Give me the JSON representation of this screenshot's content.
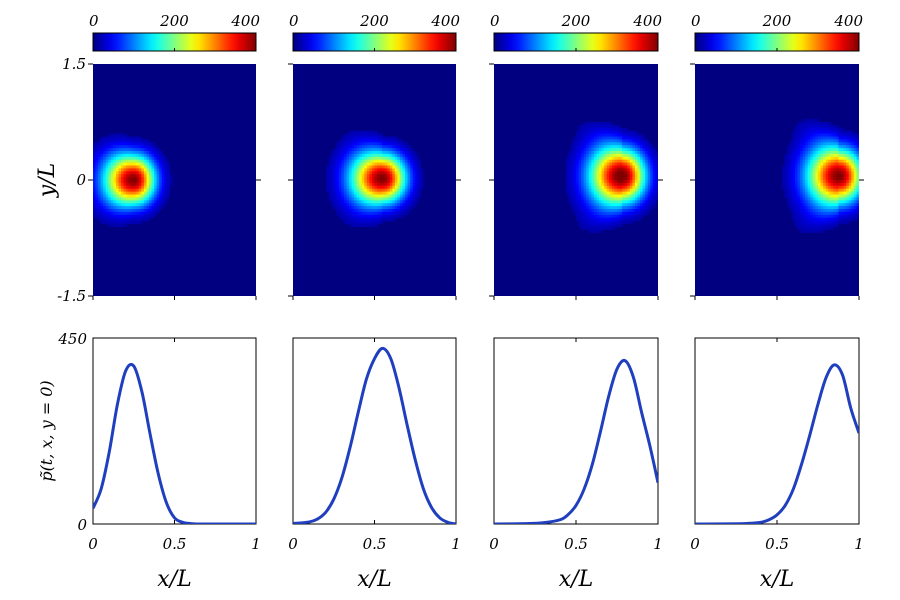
{
  "chart_data": [
    {
      "type": "heatmap",
      "panel": 1,
      "colorbar": {
        "min": 0,
        "max": 400,
        "ticks": [
          "0",
          "200",
          "400"
        ],
        "colormap": "jet"
      },
      "x_range": [
        0,
        1
      ],
      "y_range": [
        -1.5,
        1.5
      ],
      "y_ticks": [
        "1.5",
        "0",
        "-1.5"
      ],
      "ylabel": "y/L",
      "blob": {
        "x_center": 0.25,
        "y_center": 0.0,
        "peak": 400,
        "x_width": 0.12,
        "y_width": 0.22,
        "tail": 0.0
      }
    },
    {
      "type": "heatmap",
      "panel": 2,
      "colorbar": {
        "min": 0,
        "max": 400,
        "ticks": [
          "0",
          "200",
          "400"
        ],
        "colormap": "jet"
      },
      "x_range": [
        0,
        1
      ],
      "y_range": [
        -1.5,
        1.5
      ],
      "blob": {
        "x_center": 0.55,
        "y_center": 0.02,
        "peak": 400,
        "x_width": 0.13,
        "y_width": 0.22,
        "tail": 0.15
      }
    },
    {
      "type": "heatmap",
      "panel": 3,
      "colorbar": {
        "min": 0,
        "max": 400,
        "ticks": [
          "0",
          "200",
          "400"
        ],
        "colormap": "jet"
      },
      "x_range": [
        0,
        1
      ],
      "y_range": [
        -1.5,
        1.5
      ],
      "blob": {
        "x_center": 0.78,
        "y_center": 0.05,
        "peak": 410,
        "x_width": 0.13,
        "y_width": 0.24,
        "tail": 0.35
      }
    },
    {
      "type": "heatmap",
      "panel": 4,
      "colorbar": {
        "min": 0,
        "max": 400,
        "ticks": [
          "0",
          "200",
          "400"
        ],
        "colormap": "jet"
      },
      "x_range": [
        0,
        1
      ],
      "y_range": [
        -1.5,
        1.5
      ],
      "blob": {
        "x_center": 0.88,
        "y_center": 0.05,
        "peak": 400,
        "x_width": 0.13,
        "y_width": 0.24,
        "tail": 0.45
      }
    },
    {
      "type": "line",
      "panel": 1,
      "x_range": [
        0,
        1
      ],
      "y_range": [
        0,
        450
      ],
      "x_ticks": [
        "0",
        "0.5",
        "1"
      ],
      "y_ticks": [
        "450",
        "0"
      ],
      "xlabel": "x/L",
      "ylabel": "p̃(t, x, y = 0)",
      "series": [
        {
          "color": "#1f3fbf",
          "x": [
            0,
            0.05,
            0.1,
            0.15,
            0.2,
            0.25,
            0.3,
            0.35,
            0.4,
            0.45,
            0.5,
            0.55,
            0.6,
            0.65,
            0.7,
            0.8,
            0.9,
            1.0
          ],
          "y": [
            38,
            85,
            175,
            290,
            370,
            382,
            320,
            218,
            122,
            52,
            15,
            4,
            1,
            0,
            0,
            0,
            0,
            0
          ]
        }
      ]
    },
    {
      "type": "line",
      "panel": 2,
      "x_range": [
        0,
        1
      ],
      "y_range": [
        0,
        450
      ],
      "x_ticks": [
        "0",
        "0.5",
        "1"
      ],
      "xlabel": "x/L",
      "series": [
        {
          "color": "#1f3fbf",
          "x": [
            0,
            0.1,
            0.15,
            0.2,
            0.25,
            0.3,
            0.35,
            0.4,
            0.45,
            0.5,
            0.55,
            0.6,
            0.65,
            0.7,
            0.75,
            0.8,
            0.85,
            0.9,
            0.95,
            1.0
          ],
          "y": [
            1,
            5,
            12,
            28,
            60,
            112,
            185,
            270,
            350,
            400,
            425,
            400,
            330,
            240,
            155,
            85,
            40,
            15,
            4,
            0
          ]
        }
      ]
    },
    {
      "type": "line",
      "panel": 3,
      "x_range": [
        0,
        1
      ],
      "y_range": [
        0,
        450
      ],
      "x_ticks": [
        "0",
        "0.5",
        "1"
      ],
      "xlabel": "x/L",
      "series": [
        {
          "color": "#1f3fbf",
          "x": [
            0,
            0.2,
            0.3,
            0.4,
            0.45,
            0.5,
            0.55,
            0.6,
            0.65,
            0.7,
            0.75,
            0.8,
            0.85,
            0.9,
            0.95,
            1.0
          ],
          "y": [
            0,
            1,
            3,
            10,
            22,
            45,
            85,
            145,
            225,
            310,
            375,
            395,
            355,
            270,
            190,
            100
          ]
        }
      ]
    },
    {
      "type": "line",
      "panel": 4,
      "x_range": [
        0,
        1
      ],
      "y_range": [
        0,
        450
      ],
      "x_ticks": [
        "0",
        "0.5",
        "1"
      ],
      "xlabel": "x/L",
      "series": [
        {
          "color": "#1f3fbf",
          "x": [
            0,
            0.3,
            0.4,
            0.45,
            0.5,
            0.55,
            0.6,
            0.65,
            0.7,
            0.75,
            0.8,
            0.85,
            0.9,
            0.95,
            1.0
          ],
          "y": [
            0,
            1,
            4,
            10,
            22,
            45,
            85,
            145,
            215,
            290,
            355,
            385,
            360,
            280,
            220
          ]
        }
      ]
    }
  ]
}
